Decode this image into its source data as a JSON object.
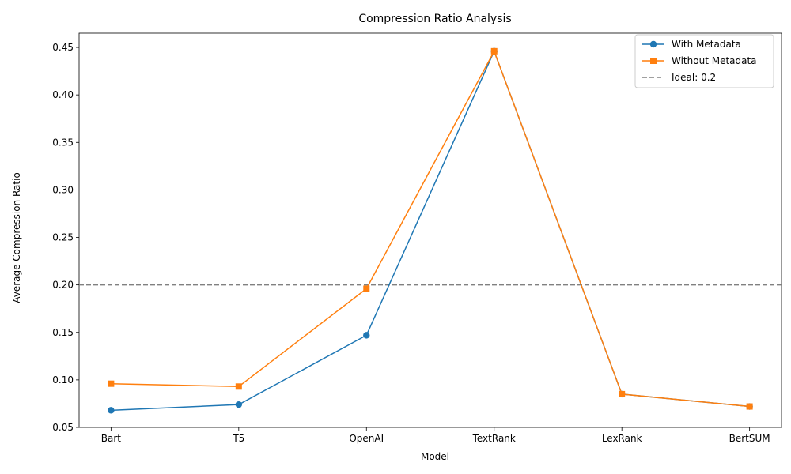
{
  "chart_data": {
    "type": "line",
    "title": "Compression Ratio Analysis",
    "xlabel": "Model",
    "ylabel": "Average Compression Ratio",
    "categories": [
      "Bart",
      "T5",
      "OpenAI",
      "TextRank",
      "LexRank",
      "BertSUM"
    ],
    "series": [
      {
        "name": "With Metadata",
        "values": [
          0.068,
          0.074,
          0.147,
          0.446,
          0.085,
          0.072
        ],
        "color": "#1f77b4",
        "marker": "circle"
      },
      {
        "name": "Without Metadata",
        "values": [
          0.096,
          0.093,
          0.196,
          0.446,
          0.085,
          0.072
        ],
        "color": "#ff7f0e",
        "marker": "square"
      }
    ],
    "reference_line": {
      "label": "Ideal: 0.2",
      "value": 0.2,
      "color": "#808080",
      "style": "dashed"
    },
    "ylim": [
      0.05,
      0.465
    ],
    "yticks": [
      "0.05",
      "0.10",
      "0.15",
      "0.20",
      "0.25",
      "0.30",
      "0.35",
      "0.40",
      "0.45"
    ],
    "grid": false,
    "legend_position": "top-right"
  }
}
